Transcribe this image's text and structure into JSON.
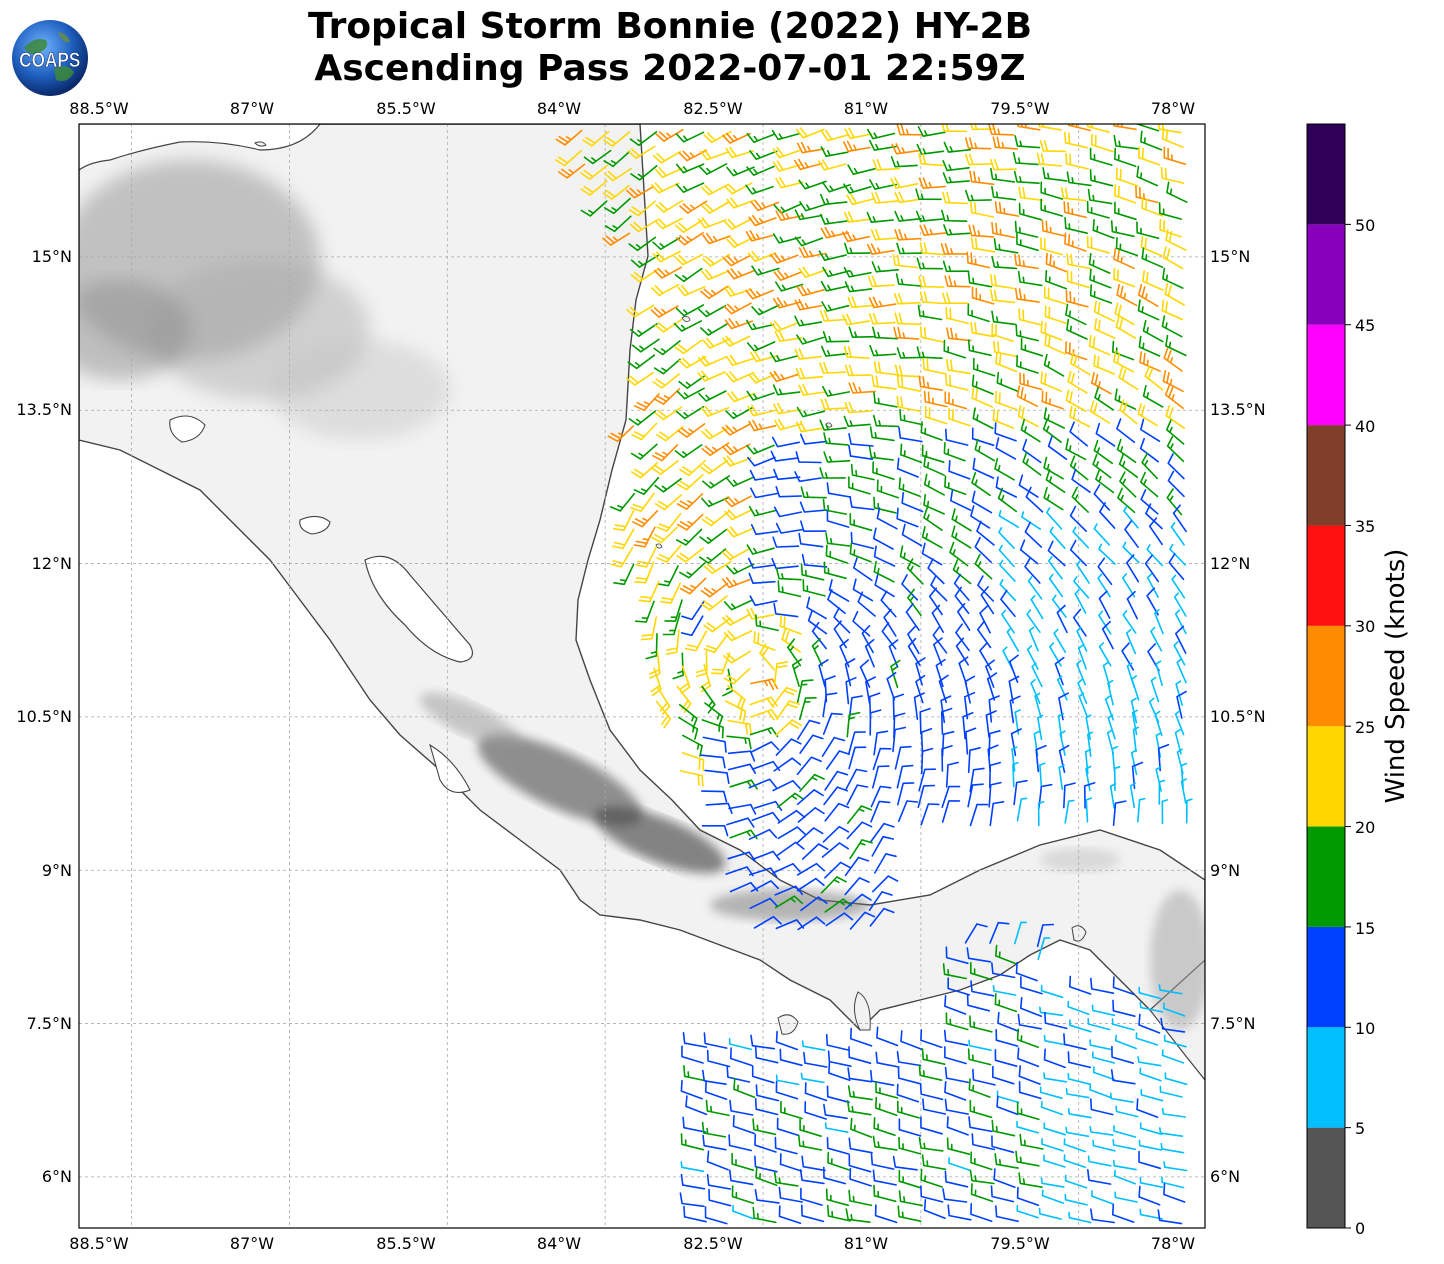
{
  "title": {
    "line1": "Tropical Storm Bonnie (2022) HY-2B",
    "line2": "Ascending Pass 2022-07-01 22:59Z"
  },
  "logo": {
    "text": "COAPS",
    "icon": "globe-logo-icon"
  },
  "map": {
    "lon_range": [
      -89.0,
      -78.3
    ],
    "lat_range": [
      5.5,
      16.3
    ],
    "x_ticks": [
      {
        "value": -88.5,
        "label": "88.5°W"
      },
      {
        "value": -87.0,
        "label": "87°W"
      },
      {
        "value": -85.5,
        "label": "85.5°W"
      },
      {
        "value": -84.0,
        "label": "84°W"
      },
      {
        "value": -82.5,
        "label": "82.5°W"
      },
      {
        "value": -81.0,
        "label": "81°W"
      },
      {
        "value": -79.5,
        "label": "79.5°W"
      },
      {
        "value": -78.0,
        "label": "78°W"
      }
    ],
    "y_ticks": [
      {
        "value": 15.0,
        "label": "15°N"
      },
      {
        "value": 13.5,
        "label": "13.5°N"
      },
      {
        "value": 12.0,
        "label": "12°N"
      },
      {
        "value": 10.5,
        "label": "10.5°N"
      },
      {
        "value": 9.0,
        "label": "9°N"
      },
      {
        "value": 7.5,
        "label": "7.5°N"
      },
      {
        "value": 6.0,
        "label": "6°N"
      }
    ],
    "grid": true,
    "storm_center": {
      "lon": -82.6,
      "lat": 10.9
    },
    "colors": {
      "coast": "#444444",
      "grid": "#aaaaaa",
      "land": "#f2f2f2",
      "mountain": "#555555"
    }
  },
  "colorbar": {
    "label": "Wind Speed (knots)",
    "range": [
      0,
      55
    ],
    "bins": [
      {
        "from": 0,
        "to": 5,
        "color": "#555555"
      },
      {
        "from": 5,
        "to": 10,
        "color": "#00bfff"
      },
      {
        "from": 10,
        "to": 15,
        "color": "#0040ff"
      },
      {
        "from": 15,
        "to": 20,
        "color": "#009900"
      },
      {
        "from": 20,
        "to": 25,
        "color": "#ffd700"
      },
      {
        "from": 25,
        "to": 30,
        "color": "#ff8c00"
      },
      {
        "from": 30,
        "to": 35,
        "color": "#ff0f0f"
      },
      {
        "from": 35,
        "to": 40,
        "color": "#7f3f2a"
      },
      {
        "from": 40,
        "to": 45,
        "color": "#ff00ff"
      },
      {
        "from": 45,
        "to": 50,
        "color": "#8800bb"
      },
      {
        "from": 50,
        "to": 55,
        "color": "#2e0058"
      }
    ],
    "ticks": [
      {
        "value": 0,
        "label": "0"
      },
      {
        "value": 5,
        "label": "5"
      },
      {
        "value": 10,
        "label": "10"
      },
      {
        "value": 15,
        "label": "15"
      },
      {
        "value": 20,
        "label": "20"
      },
      {
        "value": 25,
        "label": "25"
      },
      {
        "value": 30,
        "label": "30"
      },
      {
        "value": 35,
        "label": "35"
      },
      {
        "value": 40,
        "label": "40"
      },
      {
        "value": 45,
        "label": "45"
      },
      {
        "value": 50,
        "label": "50"
      }
    ]
  }
}
